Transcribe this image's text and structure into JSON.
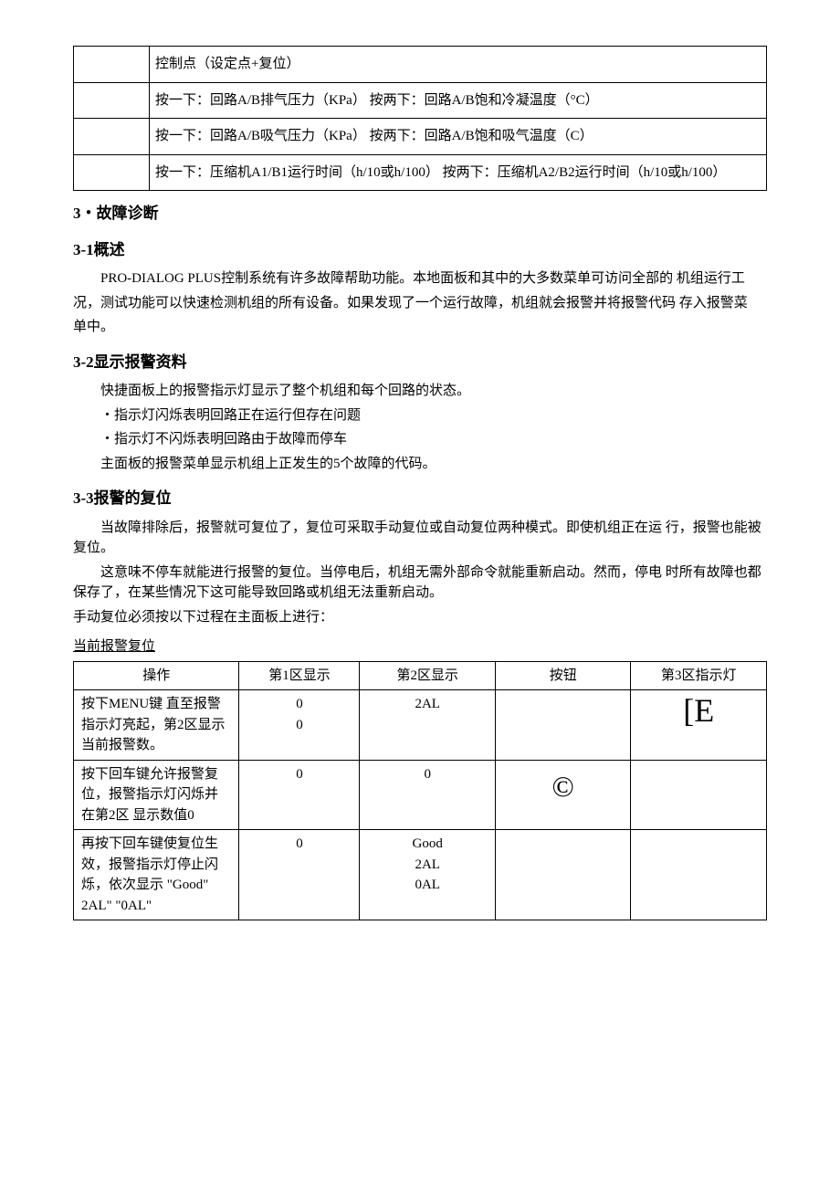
{
  "table1": {
    "rows": [
      {
        "c2": "控制点（设定点+复位）"
      },
      {
        "c2": "按一下：回路A/B排气压力（KPa）  按两下：回路A/B饱和冷凝温度（°C）"
      },
      {
        "c2": "按一下：回路A/B吸气压力（KPa）  按两下：回路A/B饱和吸气温度（C）"
      },
      {
        "c2": "按一下：压缩机A1/B1运行时间（h/10或h/100）  按两下：压缩机A2/B2运行时间（h/10或h/100）"
      }
    ]
  },
  "sec3_title": "3・故障诊断",
  "sec31": {
    "title": "3-1概述",
    "p1a": "PRO-DIALOG PLUS控制系统有许多故障帮助功能。本地面板和其中的大多数菜单可访问全部的 机组运行工",
    "p1b": "况，测试功能可以快速检测机组的所有设备。如果发现了一个运行故障，机组就会报警并将报警代码 存入报警菜",
    "p1c": "单中。"
  },
  "sec32": {
    "title": "3-2显示报警资料",
    "l1": "快捷面板上的报警指示灯显示了整个机组和每个回路的状态。",
    "l2": "・指示灯闪烁表明回路正在运行但存在问题",
    "l3": "・指示灯不闪烁表明回路由于故障而停车",
    "l4": "主面板的报警菜单显示机组上正发生的5个故障的代码。"
  },
  "sec33": {
    "title": "3-3报警的复位",
    "p1": "当故障排除后，报警就可复位了，复位可采取手动复位或自动复位两种模式。即使机组正在运 行，报警也能被复位。",
    "p2": "这意味不停车就能进行报警的复位。当停电后，机组无需外部命令就能重新启动。然而，停电 时所有故障也都保存了，在某些情况下这可能导致回路或机组无法重新启动。",
    "p3": "手动复位必须按以下过程在主面板上进行：",
    "sub": "当前报警复位"
  },
  "table2": {
    "headers": [
      "操作",
      "第1区显示",
      "第2区显示",
      "按钮",
      "第3区指示灯"
    ],
    "rows": [
      {
        "op": "按下MENU键 直至报警指示灯亮起，第2区显示当前报警数。",
        "z1": "0\n0",
        "z2": "2AL",
        "btn": "",
        "z3": "[E"
      },
      {
        "op": "按下回车键允许报警复位，报警指示灯闪烁并在第2区 显示数值0",
        "z1": "0",
        "z2": "0",
        "btn": "©",
        "z3": ""
      },
      {
        "op": "再按下回车键使复位生效，报警指示灯停止闪烁，依次显示 \"Good\" 2AL\" \"0AL\"",
        "z1": "0",
        "z2": "Good\n2AL\n0AL",
        "btn": "",
        "z3": ""
      }
    ]
  }
}
